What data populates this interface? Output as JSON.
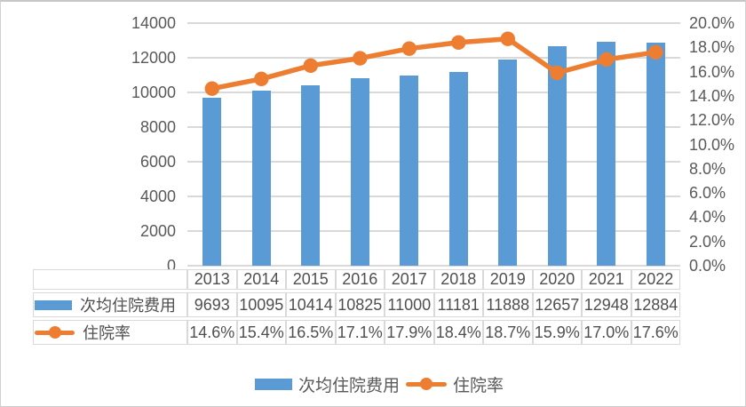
{
  "colors": {
    "bar": "#5B9BD5",
    "line": "#ED7D31",
    "gridline": "#d9d9d9",
    "axis_text": "#595959",
    "table_text": "#4f4f4f",
    "table_border": "#d9d9d9"
  },
  "chart_data": {
    "type": "combo-bar-line",
    "categories": [
      "2013",
      "2014",
      "2015",
      "2016",
      "2017",
      "2018",
      "2019",
      "2020",
      "2021",
      "2022"
    ],
    "series": [
      {
        "name": "次均住院费用",
        "type": "bar",
        "axis": "left",
        "color": "#5B9BD5",
        "values": [
          9693,
          10095,
          10414,
          10825,
          11000,
          11181,
          11888,
          12657,
          12948,
          12884
        ],
        "value_labels": [
          "9693",
          "10095",
          "10414",
          "10825",
          "11000",
          "11181",
          "11888",
          "12657",
          "12948",
          "12884"
        ]
      },
      {
        "name": "住院率",
        "type": "line",
        "axis": "right",
        "color": "#ED7D31",
        "values": [
          14.6,
          15.4,
          16.5,
          17.1,
          17.9,
          18.4,
          18.7,
          15.9,
          17.0,
          17.6
        ],
        "value_labels": [
          "14.6%",
          "15.4%",
          "16.5%",
          "17.1%",
          "17.9%",
          "18.4%",
          "18.7%",
          "15.9%",
          "17.0%",
          "17.6%"
        ]
      }
    ],
    "left_axis": {
      "min": 0,
      "max": 14000,
      "step": 2000,
      "tick_labels": [
        "14000",
        "12000",
        "10000",
        "8000",
        "6000",
        "4000",
        "2000",
        "0"
      ]
    },
    "right_axis": {
      "min": 0,
      "max": 20,
      "step": 2,
      "tick_labels": [
        "20.0%",
        "18.0%",
        "16.0%",
        "14.0%",
        "12.0%",
        "10.0%",
        "8.0%",
        "6.0%",
        "4.0%",
        "2.0%",
        "0.0%"
      ]
    },
    "grid": "horizontal",
    "legend_position": "bottom",
    "data_table_shown": true
  },
  "legend": {
    "items": [
      {
        "label": "次均住院费用",
        "swatch": "bar"
      },
      {
        "label": "住院率",
        "swatch": "line-marker"
      }
    ]
  }
}
